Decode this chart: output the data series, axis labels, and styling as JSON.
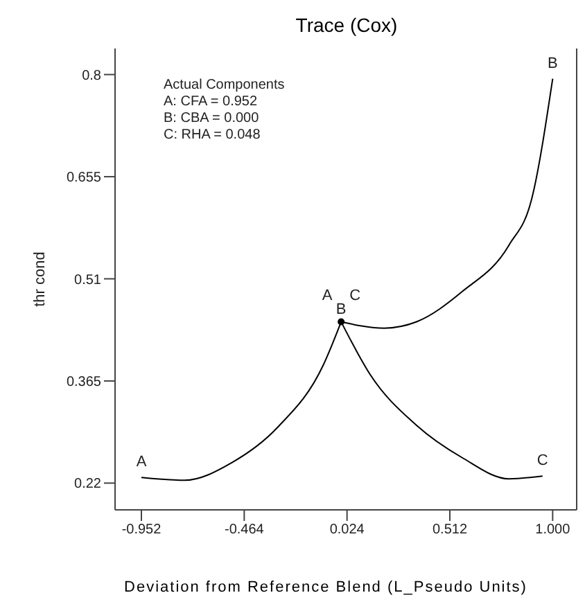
{
  "chart_data": {
    "type": "line",
    "title": "Trace (Cox)",
    "xlabel": "Deviation from Reference Blend (L_Pseudo Units)",
    "ylabel": "thr cond",
    "annotations": [
      "Actual Components",
      "A: CFA = 0.952",
      "B: CBA = 0.000",
      "C: RHA = 0.048"
    ],
    "xlim": [
      -1.077,
      1.114
    ],
    "ylim": [
      0.182,
      0.837
    ],
    "xticks": [
      -0.952,
      -0.464,
      0.024,
      0.512,
      {
        "value": 1,
        "label": "1.000"
      }
    ],
    "yticks": [
      0.22,
      0.365,
      0.51,
      0.655,
      0.8
    ],
    "grid": false,
    "legend": false,
    "marker": "none",
    "line_style": "solid",
    "series": [
      {
        "name": "A",
        "color": "#000000",
        "x": [
          -0.952,
          -0.748,
          -0.523,
          -0.306,
          -0.088,
          -0.004
        ],
        "values": [
          0.228,
          0.224,
          0.249,
          0.299,
          0.388,
          0.449
        ]
      },
      {
        "name": "B",
        "color": "#000000",
        "x": [
          -0.004,
          0.2,
          0.354,
          0.571,
          0.793,
          0.901,
          1.0
        ],
        "values": [
          0.449,
          0.44,
          0.449,
          0.492,
          0.558,
          0.624,
          0.794
        ]
      },
      {
        "name": "C",
        "color": "#000000",
        "x": [
          -0.004,
          0.134,
          0.354,
          0.571,
          0.793,
          0.952
        ],
        "values": [
          0.449,
          0.374,
          0.302,
          0.256,
          0.226,
          0.23
        ]
      },
      {
        "type": "scatter",
        "color": "#000000",
        "marker": "circle",
        "x": [
          -0.004
        ],
        "values": [
          0.449
        ]
      }
    ]
  }
}
